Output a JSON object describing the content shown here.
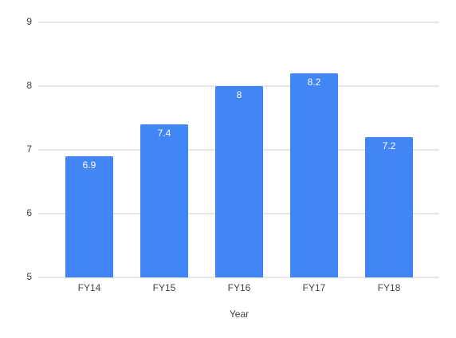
{
  "chart_data": {
    "type": "bar",
    "x_label": "Year",
    "categories": [
      "FY14",
      "FY15",
      "FY16",
      "FY17",
      "FY18"
    ],
    "values": [
      6.9,
      7.4,
      8,
      8.2,
      7.2
    ],
    "color": "#4285f4",
    "ylim": [
      5,
      9
    ],
    "yticks": [
      5,
      6,
      7,
      8,
      9
    ],
    "grid": true,
    "data_labels": true
  }
}
